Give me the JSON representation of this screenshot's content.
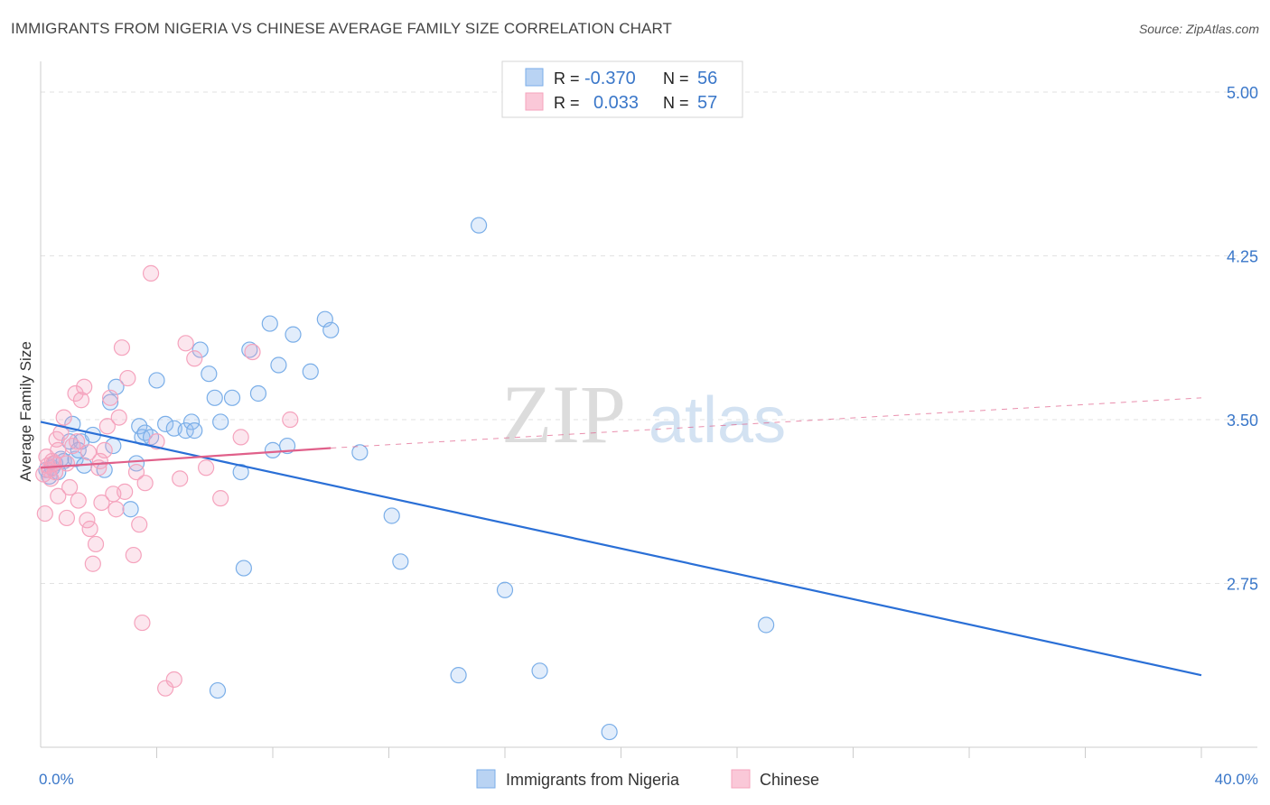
{
  "header": {
    "title": "IMMIGRANTS FROM NIGERIA VS CHINESE AVERAGE FAMILY SIZE CORRELATION CHART",
    "source": "Source: ZipAtlas.com"
  },
  "watermark": {
    "zip": "ZIP",
    "atlas": "atlas"
  },
  "stats_legend": {
    "rows": [
      {
        "r_label": "R =",
        "r_value": "-0.370",
        "n_label": "N =",
        "n_value": "56",
        "color": "#a8c8f0"
      },
      {
        "r_label": "R =",
        "r_value": "0.033",
        "n_label": "N =",
        "n_value": "57",
        "color": "#f5b8cc"
      }
    ]
  },
  "chart_data": {
    "type": "scatter",
    "title": "IMMIGRANTS FROM NIGERIA VS CHINESE AVERAGE FAMILY SIZE CORRELATION CHART",
    "xlabel": "",
    "ylabel": "Average Family Size",
    "xlim": [
      0,
      40
    ],
    "ylim": [
      2.0,
      5.12
    ],
    "x_tick_labels": [
      "0.0%",
      "40.0%"
    ],
    "y_ticks": [
      2.75,
      3.5,
      4.25,
      5.0
    ],
    "y_tick_labels": [
      "2.75",
      "3.50",
      "4.25",
      "5.00"
    ],
    "grid": "horizontal dashed",
    "legend_position": "bottom-center",
    "series": [
      {
        "name": "Immigrants from Nigeria",
        "color": "#7aaee8",
        "line_color": "#2a6fd6",
        "points": [
          [
            0.2,
            3.27
          ],
          [
            0.3,
            3.24
          ],
          [
            0.4,
            3.28
          ],
          [
            0.5,
            3.3
          ],
          [
            0.6,
            3.26
          ],
          [
            0.7,
            3.32
          ],
          [
            0.8,
            3.31
          ],
          [
            1.0,
            3.4
          ],
          [
            1.1,
            3.48
          ],
          [
            1.2,
            3.32
          ],
          [
            1.4,
            3.4
          ],
          [
            1.5,
            3.29
          ],
          [
            1.8,
            3.43
          ],
          [
            2.2,
            3.27
          ],
          [
            2.5,
            3.38
          ],
          [
            2.6,
            3.65
          ],
          [
            3.1,
            3.09
          ],
          [
            3.3,
            3.3
          ],
          [
            3.4,
            3.47
          ],
          [
            3.5,
            3.42
          ],
          [
            3.6,
            3.44
          ],
          [
            3.8,
            3.42
          ],
          [
            4.0,
            3.68
          ],
          [
            4.3,
            3.48
          ],
          [
            4.6,
            3.46
          ],
          [
            5.0,
            3.45
          ],
          [
            5.2,
            3.49
          ],
          [
            5.3,
            3.45
          ],
          [
            5.5,
            3.82
          ],
          [
            5.8,
            3.71
          ],
          [
            6.0,
            3.6
          ],
          [
            6.2,
            3.49
          ],
          [
            6.6,
            3.6
          ],
          [
            6.9,
            3.26
          ],
          [
            7.2,
            3.82
          ],
          [
            7.5,
            3.62
          ],
          [
            7.9,
            3.94
          ],
          [
            8.0,
            3.36
          ],
          [
            8.2,
            3.75
          ],
          [
            8.5,
            3.38
          ],
          [
            8.7,
            3.89
          ],
          [
            9.3,
            3.72
          ],
          [
            9.8,
            3.96
          ],
          [
            10.0,
            3.91
          ],
          [
            11.0,
            3.35
          ],
          [
            12.1,
            3.06
          ],
          [
            12.4,
            2.85
          ],
          [
            14.4,
            2.33
          ],
          [
            15.1,
            4.39
          ],
          [
            16.0,
            2.72
          ],
          [
            17.2,
            2.35
          ],
          [
            19.6,
            2.07
          ],
          [
            25.0,
            2.56
          ],
          [
            1.3,
            3.36
          ],
          [
            2.4,
            3.58
          ],
          [
            6.1,
            2.26
          ],
          [
            7.0,
            2.82
          ]
        ]
      },
      {
        "name": "Chinese",
        "color": "#f5a3bd",
        "line_color": "#e0608a",
        "points": [
          [
            0.1,
            3.25
          ],
          [
            0.2,
            3.33
          ],
          [
            0.25,
            3.29
          ],
          [
            0.3,
            3.27
          ],
          [
            0.35,
            3.23
          ],
          [
            0.4,
            3.31
          ],
          [
            0.45,
            3.3
          ],
          [
            0.5,
            3.26
          ],
          [
            0.55,
            3.41
          ],
          [
            0.6,
            3.15
          ],
          [
            0.7,
            3.44
          ],
          [
            0.8,
            3.51
          ],
          [
            0.9,
            3.3
          ],
          [
            1.0,
            3.19
          ],
          [
            1.1,
            3.38
          ],
          [
            1.2,
            3.62
          ],
          [
            1.3,
            3.13
          ],
          [
            1.4,
            3.59
          ],
          [
            1.5,
            3.65
          ],
          [
            1.6,
            3.04
          ],
          [
            1.7,
            3.0
          ],
          [
            1.8,
            2.84
          ],
          [
            1.9,
            2.93
          ],
          [
            2.0,
            3.28
          ],
          [
            2.1,
            3.12
          ],
          [
            2.2,
            3.36
          ],
          [
            2.3,
            3.47
          ],
          [
            2.4,
            3.6
          ],
          [
            2.5,
            3.16
          ],
          [
            2.6,
            3.09
          ],
          [
            2.7,
            3.51
          ],
          [
            2.8,
            3.83
          ],
          [
            2.9,
            3.17
          ],
          [
            3.0,
            3.69
          ],
          [
            3.2,
            2.88
          ],
          [
            3.3,
            3.26
          ],
          [
            3.4,
            3.02
          ],
          [
            3.5,
            2.57
          ],
          [
            3.6,
            3.21
          ],
          [
            3.8,
            4.17
          ],
          [
            4.0,
            3.4
          ],
          [
            4.3,
            2.27
          ],
          [
            4.6,
            2.31
          ],
          [
            4.8,
            3.23
          ],
          [
            5.0,
            3.85
          ],
          [
            5.3,
            3.78
          ],
          [
            5.7,
            3.28
          ],
          [
            6.2,
            3.14
          ],
          [
            6.9,
            3.42
          ],
          [
            7.3,
            3.81
          ],
          [
            0.15,
            3.07
          ],
          [
            0.6,
            3.36
          ],
          [
            1.25,
            3.4
          ],
          [
            1.65,
            3.35
          ],
          [
            2.05,
            3.31
          ],
          [
            0.9,
            3.05
          ],
          [
            8.6,
            3.5
          ]
        ]
      }
    ],
    "trend_lines": [
      {
        "series": "Immigrants from Nigeria",
        "from": [
          0,
          3.49
        ],
        "to": [
          40,
          2.33
        ],
        "style": "solid"
      },
      {
        "series": "Chinese",
        "from": [
          0,
          3.28
        ],
        "to": [
          10,
          3.37
        ],
        "style": "solid"
      },
      {
        "series": "Chinese",
        "from": [
          10,
          3.37
        ],
        "to": [
          40,
          3.6
        ],
        "style": "dashed"
      }
    ]
  }
}
